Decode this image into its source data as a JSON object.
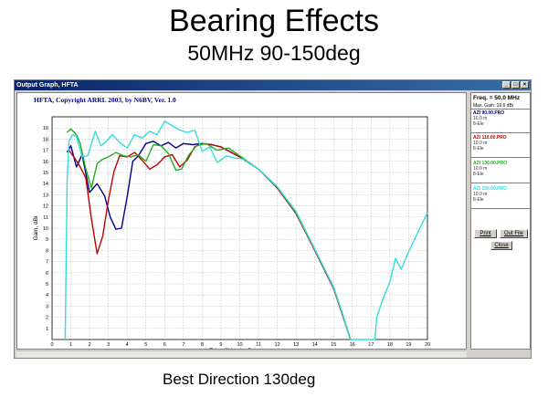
{
  "slide": {
    "title": "Bearing Effects",
    "subtitle": "50MHz 90-150deg",
    "caption": "Best Direction 130deg"
  },
  "window": {
    "title": "Output Graph, HFTA",
    "header": "HFTA, Copyright ARRL 2003, by N6BV, Ver. 1.0"
  },
  "side_panel": {
    "freq": "Freq. = 50.0 MHz",
    "max_gain": "Max. Gain: 19.6 dBi",
    "legend": [
      {
        "file": "AZI 90.00.PRO",
        "freq": "10.0 m",
        "elements": "8-Ele",
        "color": "#00008b"
      },
      {
        "file": "AZI 110.00.PRO",
        "freq": "10.0 m",
        "elements": "8-Ele",
        "color": "#c00000"
      },
      {
        "file": "AZI 130.00.PRO",
        "freq": "10.0 m",
        "elements": "8-Ele",
        "color": "#22b022"
      },
      {
        "file": "AZI 150.00.PRO",
        "freq": "10.0 m",
        "elements": "8-Ele",
        "color": "#33dddd"
      }
    ],
    "buttons": {
      "print": "Print",
      "out_file": "Out File",
      "close": "Close"
    }
  },
  "chart_data": {
    "type": "line",
    "xlabel": "Takeoff Angle, Degrees",
    "ylabel": "Gain, dBi",
    "xlim": [
      0,
      20
    ],
    "ylim": [
      0,
      20
    ],
    "xticks": [
      0,
      1,
      2,
      3,
      4,
      5,
      6,
      7,
      8,
      9,
      10,
      11,
      12,
      13,
      14,
      15,
      16,
      17,
      18,
      19,
      20
    ],
    "yticks": [
      1,
      2,
      3,
      4,
      5,
      6,
      7,
      8,
      9,
      10,
      11,
      12,
      13,
      14,
      15,
      16,
      17,
      18,
      19
    ],
    "grid": true,
    "series": [
      {
        "name": "AZI 90.00.PRO",
        "color": "#00008b",
        "points": [
          [
            0.8,
            16.8
          ],
          [
            1.0,
            17.4
          ],
          [
            1.3,
            15.5
          ],
          [
            1.6,
            16.6
          ],
          [
            2.0,
            13.2
          ],
          [
            2.4,
            14.0
          ],
          [
            2.8,
            12.9
          ],
          [
            3.1,
            11.0
          ],
          [
            3.4,
            9.9
          ],
          [
            3.7,
            10.0
          ],
          [
            4.0,
            12.8
          ],
          [
            4.3,
            16.0
          ],
          [
            4.6,
            16.5
          ],
          [
            5.0,
            17.6
          ],
          [
            5.4,
            17.8
          ],
          [
            5.8,
            17.4
          ],
          [
            6.2,
            17.7
          ],
          [
            6.6,
            17.2
          ],
          [
            7.0,
            17.6
          ],
          [
            7.5,
            17.5
          ],
          [
            8.0,
            17.6
          ],
          [
            8.5,
            17.5
          ],
          [
            9.0,
            17.3
          ],
          [
            10.0,
            16.4
          ],
          [
            11.0,
            15.3
          ],
          [
            12.0,
            13.7
          ],
          [
            13.0,
            11.4
          ],
          [
            14.0,
            8.0
          ],
          [
            15.0,
            4.6
          ],
          [
            15.5,
            2.1
          ],
          [
            15.9,
            0.0
          ]
        ]
      },
      {
        "name": "AZI 110.00.PRO",
        "color": "#c00000",
        "points": [
          [
            0.9,
            17.0
          ],
          [
            1.2,
            16.3
          ],
          [
            1.5,
            15.5
          ],
          [
            1.8,
            14.5
          ],
          [
            2.1,
            10.8
          ],
          [
            2.4,
            7.7
          ],
          [
            2.7,
            9.3
          ],
          [
            3.0,
            12.5
          ],
          [
            3.3,
            15.1
          ],
          [
            3.6,
            16.5
          ],
          [
            4.0,
            16.4
          ],
          [
            4.4,
            16.8
          ],
          [
            4.8,
            16.1
          ],
          [
            5.2,
            15.3
          ],
          [
            5.6,
            15.7
          ],
          [
            6.0,
            16.4
          ],
          [
            6.4,
            16.6
          ],
          [
            6.8,
            15.5
          ],
          [
            7.2,
            16.1
          ],
          [
            7.6,
            17.3
          ],
          [
            8.0,
            17.6
          ],
          [
            8.5,
            17.5
          ],
          [
            9.0,
            17.3
          ],
          [
            10.0,
            16.4
          ],
          [
            11.0,
            15.3
          ],
          [
            12.0,
            13.6
          ],
          [
            13.0,
            11.3
          ],
          [
            14.0,
            8.0
          ],
          [
            15.0,
            4.6
          ],
          [
            15.5,
            2.1
          ],
          [
            15.9,
            0.0
          ]
        ]
      },
      {
        "name": "AZI 130.00.PRO",
        "color": "#22b022",
        "points": [
          [
            0.8,
            18.6
          ],
          [
            1.0,
            18.9
          ],
          [
            1.3,
            18.4
          ],
          [
            1.5,
            17.6
          ],
          [
            1.8,
            15.3
          ],
          [
            2.1,
            13.6
          ],
          [
            2.4,
            15.8
          ],
          [
            2.7,
            16.2
          ],
          [
            3.0,
            16.4
          ],
          [
            3.4,
            16.8
          ],
          [
            3.8,
            16.5
          ],
          [
            4.2,
            16.4
          ],
          [
            4.6,
            16.6
          ],
          [
            5.0,
            16.0
          ],
          [
            5.4,
            17.5
          ],
          [
            5.8,
            17.4
          ],
          [
            6.2,
            16.7
          ],
          [
            6.6,
            15.2
          ],
          [
            6.9,
            15.3
          ],
          [
            7.3,
            16.6
          ],
          [
            7.7,
            17.4
          ],
          [
            8.2,
            17.6
          ],
          [
            8.8,
            17.0
          ],
          [
            9.4,
            17.2
          ],
          [
            10.0,
            16.5
          ],
          [
            11.0,
            15.3
          ],
          [
            12.0,
            13.7
          ],
          [
            13.0,
            11.4
          ],
          [
            14.0,
            8.1
          ],
          [
            15.0,
            4.7
          ],
          [
            15.5,
            2.2
          ],
          [
            15.9,
            0.0
          ]
        ]
      },
      {
        "name": "AZI 150.00.PRO",
        "color": "#33dddd",
        "points": [
          [
            0.7,
            0.0
          ],
          [
            0.8,
            14.0
          ],
          [
            0.9,
            17.8
          ],
          [
            1.1,
            18.4
          ],
          [
            1.3,
            18.2
          ],
          [
            1.6,
            16.4
          ],
          [
            1.9,
            16.5
          ],
          [
            2.3,
            18.7
          ],
          [
            2.6,
            17.4
          ],
          [
            2.9,
            17.8
          ],
          [
            3.2,
            18.4
          ],
          [
            3.6,
            17.7
          ],
          [
            4.0,
            17.2
          ],
          [
            4.4,
            18.4
          ],
          [
            4.8,
            18.1
          ],
          [
            5.2,
            18.7
          ],
          [
            5.6,
            18.4
          ],
          [
            6.0,
            19.6
          ],
          [
            6.4,
            19.2
          ],
          [
            6.8,
            18.8
          ],
          [
            7.2,
            18.6
          ],
          [
            7.6,
            18.8
          ],
          [
            8.0,
            16.9
          ],
          [
            8.4,
            17.3
          ],
          [
            8.8,
            15.9
          ],
          [
            9.3,
            16.5
          ],
          [
            9.7,
            16.3
          ],
          [
            10.2,
            16.2
          ],
          [
            11.0,
            15.3
          ],
          [
            12.0,
            13.7
          ],
          [
            13.0,
            11.5
          ],
          [
            14.0,
            8.1
          ],
          [
            15.0,
            4.7
          ],
          [
            15.5,
            2.2
          ],
          [
            15.9,
            0.0
          ],
          [
            17.2,
            0.0
          ],
          [
            17.3,
            2.0
          ],
          [
            17.6,
            3.5
          ],
          [
            18.0,
            5.2
          ],
          [
            18.3,
            7.3
          ],
          [
            18.6,
            6.3
          ],
          [
            19.0,
            7.9
          ],
          [
            19.4,
            9.3
          ],
          [
            20.0,
            11.4
          ]
        ]
      }
    ]
  }
}
